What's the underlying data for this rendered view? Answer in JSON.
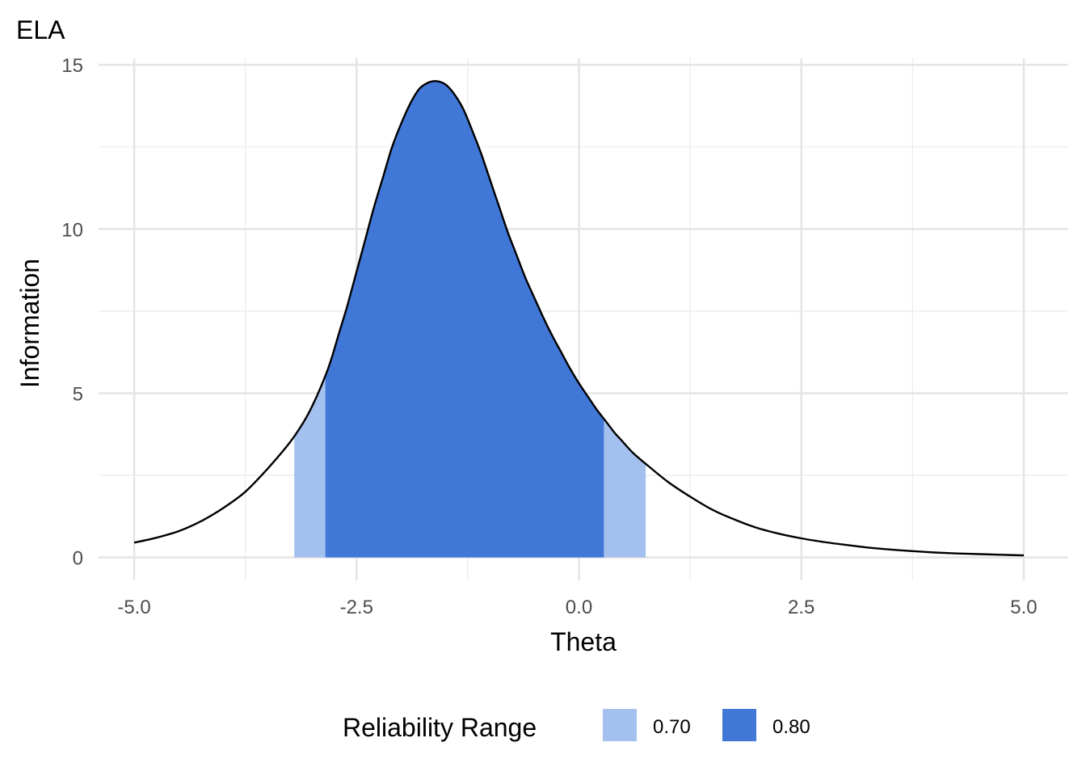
{
  "chart_data": {
    "type": "area",
    "title": "ELA",
    "xlabel": "Theta",
    "ylabel": "Information",
    "xlim": [
      -5.4,
      5.5
    ],
    "ylim": [
      -0.7,
      15.2
    ],
    "x_ticks": [
      -5.0,
      -2.5,
      0.0,
      2.5,
      5.0
    ],
    "x_tick_labels": [
      "-5.0",
      "-2.5",
      "0.0",
      "2.5",
      "5.0"
    ],
    "x_minor_ticks": [
      -3.75,
      -1.25,
      1.25,
      3.75
    ],
    "y_ticks": [
      0,
      5,
      10,
      15
    ],
    "y_tick_labels": [
      "0",
      "5",
      "10",
      "15"
    ],
    "y_minor_ticks": [
      2.5,
      7.5,
      12.5
    ],
    "grid": true,
    "legend": {
      "title": "Reliability Range",
      "position": "bottom",
      "entries": [
        {
          "label": "0.70",
          "color": "#a4c0ee"
        },
        {
          "label": "0.80",
          "color": "#4178d7"
        }
      ]
    },
    "curve": {
      "name": "Information",
      "color": "#000000",
      "x": [
        -5.0,
        -4.75,
        -4.5,
        -4.25,
        -4.0,
        -3.75,
        -3.5,
        -3.25,
        -3.1,
        -3.0,
        -2.9,
        -2.8,
        -2.7,
        -2.6,
        -2.5,
        -2.4,
        -2.3,
        -2.2,
        -2.1,
        -2.0,
        -1.9,
        -1.8,
        -1.7,
        -1.6,
        -1.5,
        -1.4,
        -1.3,
        -1.2,
        -1.1,
        -1.0,
        -0.9,
        -0.8,
        -0.7,
        -0.6,
        -0.5,
        -0.4,
        -0.3,
        -0.2,
        -0.1,
        0.0,
        0.1,
        0.2,
        0.3,
        0.4,
        0.5,
        0.6,
        0.75,
        1.0,
        1.25,
        1.5,
        1.75,
        2.0,
        2.25,
        2.5,
        2.75,
        3.0,
        3.25,
        3.5,
        3.75,
        4.0,
        4.25,
        4.5,
        4.75,
        5.0
      ],
      "y": [
        0.45,
        0.6,
        0.8,
        1.1,
        1.5,
        2.0,
        2.7,
        3.5,
        4.1,
        4.6,
        5.2,
        5.9,
        6.8,
        7.7,
        8.7,
        9.7,
        10.7,
        11.6,
        12.5,
        13.2,
        13.8,
        14.25,
        14.45,
        14.5,
        14.4,
        14.1,
        13.65,
        13.0,
        12.3,
        11.5,
        10.7,
        9.9,
        9.2,
        8.5,
        7.9,
        7.3,
        6.75,
        6.25,
        5.75,
        5.3,
        4.9,
        4.5,
        4.15,
        3.8,
        3.5,
        3.2,
        2.85,
        2.3,
        1.85,
        1.45,
        1.15,
        0.9,
        0.72,
        0.58,
        0.47,
        0.38,
        0.3,
        0.24,
        0.19,
        0.15,
        0.12,
        0.1,
        0.08,
        0.06
      ]
    },
    "bands": [
      {
        "label": "0.70",
        "x_start": -3.2,
        "x_end": 0.75,
        "y": 3.3,
        "color": "#a4c0ee"
      },
      {
        "label": "0.80",
        "x_start": -2.85,
        "x_end": 0.28,
        "y": 5.0,
        "color": "#4178d7"
      }
    ]
  }
}
